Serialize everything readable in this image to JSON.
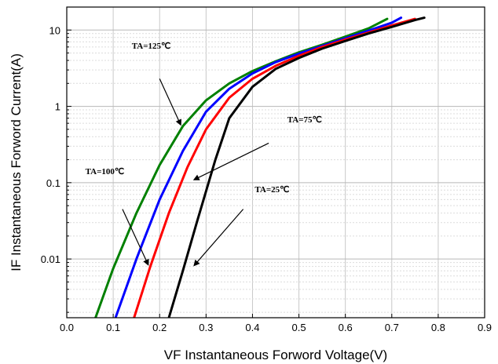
{
  "chart_data": {
    "type": "line",
    "xlabel": "VF Instantaneous Forword Voltage(V)",
    "ylabel": "IF Instantaneous Forword Current(A)",
    "x_range": [
      0.0,
      0.9
    ],
    "y_range": [
      0.0017,
      20
    ],
    "y_scale": "log",
    "grid": true,
    "x_ticks": [
      "0.0",
      "0.1",
      "0.2",
      "0.3",
      "0.4",
      "0.5",
      "0.6",
      "0.7",
      "0.8",
      "0.9"
    ],
    "y_ticks": [
      {
        "value": 10,
        "label": "10"
      },
      {
        "value": 1,
        "label": "1"
      },
      {
        "value": 0.1,
        "label": "0.1"
      },
      {
        "value": 0.01,
        "label": "0.01"
      }
    ],
    "series": [
      {
        "color": "#008000",
        "points": [
          [
            0.062,
            0.0017
          ],
          [
            0.1,
            0.0075
          ],
          [
            0.15,
            0.04
          ],
          [
            0.2,
            0.17
          ],
          [
            0.25,
            0.55
          ],
          [
            0.3,
            1.2
          ],
          [
            0.35,
            2.0
          ],
          [
            0.4,
            2.9
          ],
          [
            0.45,
            3.9
          ],
          [
            0.5,
            5.1
          ],
          [
            0.55,
            6.4
          ],
          [
            0.6,
            8.2
          ],
          [
            0.65,
            10.5
          ],
          [
            0.69,
            14.0
          ]
        ]
      },
      {
        "color": "#0000ff",
        "points": [
          [
            0.105,
            0.0017
          ],
          [
            0.15,
            0.01
          ],
          [
            0.2,
            0.06
          ],
          [
            0.25,
            0.26
          ],
          [
            0.3,
            0.85
          ],
          [
            0.35,
            1.7
          ],
          [
            0.4,
            2.7
          ],
          [
            0.45,
            3.8
          ],
          [
            0.5,
            4.9
          ],
          [
            0.55,
            6.2
          ],
          [
            0.6,
            7.8
          ],
          [
            0.65,
            9.8
          ],
          [
            0.7,
            12.5
          ],
          [
            0.72,
            14.5
          ]
        ]
      },
      {
        "color": "#ff0000",
        "points": [
          [
            0.145,
            0.0017
          ],
          [
            0.18,
            0.008
          ],
          [
            0.22,
            0.04
          ],
          [
            0.26,
            0.16
          ],
          [
            0.3,
            0.5
          ],
          [
            0.35,
            1.3
          ],
          [
            0.4,
            2.3
          ],
          [
            0.45,
            3.4
          ],
          [
            0.5,
            4.6
          ],
          [
            0.55,
            6.0
          ],
          [
            0.6,
            7.5
          ],
          [
            0.65,
            9.3
          ],
          [
            0.7,
            11.5
          ],
          [
            0.75,
            14.0
          ]
        ]
      },
      {
        "color": "#000000",
        "points": [
          [
            0.22,
            0.0017
          ],
          [
            0.25,
            0.007
          ],
          [
            0.28,
            0.03
          ],
          [
            0.32,
            0.2
          ],
          [
            0.35,
            0.7
          ],
          [
            0.4,
            1.8
          ],
          [
            0.45,
            3.1
          ],
          [
            0.5,
            4.3
          ],
          [
            0.55,
            5.7
          ],
          [
            0.6,
            7.2
          ],
          [
            0.65,
            9.0
          ],
          [
            0.7,
            11.0
          ],
          [
            0.75,
            13.5
          ],
          [
            0.77,
            14.5
          ]
        ]
      }
    ],
    "annotations": [
      {
        "text": "TA=125℃",
        "x": 0.14,
        "y": 5.7,
        "arrow_from": [
          0.2,
          2.3
        ],
        "arrow_to": [
          0.245,
          0.58
        ]
      },
      {
        "text": "TA=100℃",
        "x": 0.04,
        "y": 0.13,
        "arrow_from": [
          0.12,
          0.045
        ],
        "arrow_to": [
          0.175,
          0.0085
        ]
      },
      {
        "text": "TA=75℃",
        "x": 0.475,
        "y": 0.62,
        "arrow_from": [
          0.435,
          0.33
        ],
        "arrow_to": [
          0.275,
          0.11
        ]
      },
      {
        "text": "TA=25℃",
        "x": 0.405,
        "y": 0.075,
        "arrow_from": [
          0.38,
          0.045
        ],
        "arrow_to": [
          0.275,
          0.0083
        ]
      }
    ]
  }
}
